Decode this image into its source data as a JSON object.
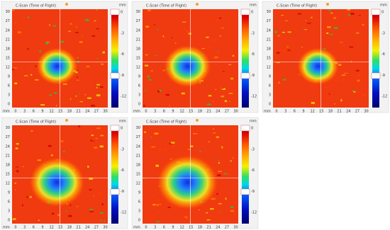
{
  "panels": [
    {
      "title": "C-Scan (Time of Flight)"
    },
    {
      "title": "C-Scan (Time of Flight)"
    },
    {
      "title": "C-Scan (Time of Flight)"
    },
    {
      "title": "C-Scan (Time of Flight)"
    },
    {
      "title": "C-Scan (Time of Flight)"
    }
  ],
  "unit": "mm",
  "xticks": [
    0,
    3,
    6,
    9,
    12,
    15,
    18,
    21,
    24,
    27,
    30
  ],
  "yticks": [
    30,
    27,
    24,
    21,
    18,
    15,
    12,
    9,
    6,
    3,
    0
  ],
  "colorbar_ticks": [
    0,
    -3,
    -6,
    -9,
    -12
  ]
}
